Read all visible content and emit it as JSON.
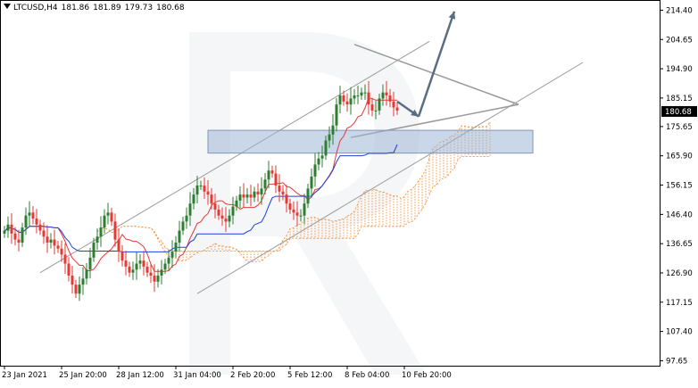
{
  "header": {
    "symbol": "LTCUSD,H4",
    "open": "181.86",
    "high": "181.89",
    "low": "179.73",
    "close": "180.68"
  },
  "colors": {
    "bull": "#2e7d32",
    "bear": "#e53935",
    "tenkan": "#e53935",
    "kijun": "#1e3fd8",
    "cloud": "#f28a2e",
    "cloud_old": "#c9a3e6",
    "channel": "#9a9a9a",
    "zone": "#9fb6d6",
    "arrow": "#5a6e82",
    "price_box": "#000000"
  },
  "chart_data": {
    "type": "candlestick",
    "symbol": "LTCUSD",
    "timeframe": "H4",
    "current_price": 180.68,
    "current_price_label": "180.68",
    "ylim": [
      96.0,
      217.5
    ],
    "y_ticks": [
      "214.40",
      "204.65",
      "194.90",
      "185.15",
      "175.65",
      "165.90",
      "156.15",
      "146.40",
      "136.65",
      "126.90",
      "117.15",
      "107.40",
      "97.65"
    ],
    "y_tick_values": [
      214.4,
      204.65,
      194.9,
      185.15,
      175.65,
      165.9,
      156.15,
      146.4,
      136.65,
      126.9,
      117.15,
      107.4,
      97.65
    ],
    "x_ticks": [
      "23 Jan 2021",
      "25 Jan 20:00",
      "28 Jan 12:00",
      "31 Jan 04:00",
      "2 Feb 20:00",
      "5 Feb 12:00",
      "8 Feb 04:00",
      "10 Feb 20:00"
    ],
    "x_tick_bars": [
      0,
      16,
      32,
      48,
      64,
      80,
      96,
      112
    ],
    "closes": [
      141,
      143,
      140,
      138,
      137,
      142,
      146,
      147,
      145,
      143,
      141,
      139,
      137,
      138,
      136,
      135,
      133,
      130,
      126,
      123,
      120,
      123,
      125,
      128,
      132,
      137,
      139,
      142,
      146,
      147,
      144,
      138,
      134,
      131,
      129,
      127,
      128,
      130,
      131,
      129,
      127,
      126,
      124,
      126,
      128,
      130,
      132,
      134,
      137,
      141,
      144,
      146,
      150,
      153,
      156,
      156,
      154,
      153,
      150,
      148,
      146,
      145,
      144,
      146,
      149,
      151,
      153,
      152,
      153,
      152,
      154,
      153,
      155,
      158,
      161,
      160,
      156,
      154,
      153,
      150,
      148,
      147,
      146,
      146,
      150,
      155,
      159,
      163,
      165,
      166,
      171,
      173,
      176,
      183,
      186,
      184,
      183,
      185,
      186,
      186,
      187,
      187,
      183,
      181,
      181,
      185,
      187,
      186,
      184,
      182,
      181
    ]
  }
}
